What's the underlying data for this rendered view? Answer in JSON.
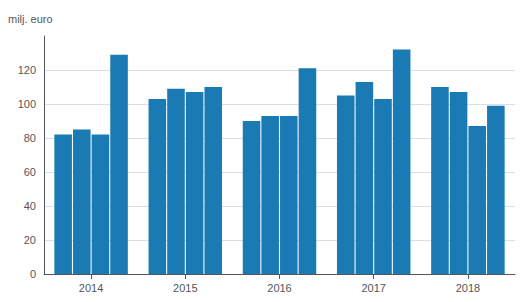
{
  "chart_data": {
    "type": "bar",
    "categories": [
      "2014",
      "2015",
      "2016",
      "2017",
      "2018"
    ],
    "series": [
      {
        "values": [
          82,
          103,
          90,
          105,
          110
        ]
      },
      {
        "values": [
          85,
          109,
          93,
          113,
          107
        ]
      },
      {
        "values": [
          82,
          107,
          93,
          103,
          87
        ]
      },
      {
        "values": [
          129,
          110,
          121,
          132,
          99
        ]
      }
    ],
    "color": "#1a7ab4",
    "ylabel": "milj. euro",
    "ylim": [
      0,
      140
    ],
    "yticks": [
      0,
      20,
      40,
      60,
      80,
      100,
      120
    ],
    "grid": true
  }
}
